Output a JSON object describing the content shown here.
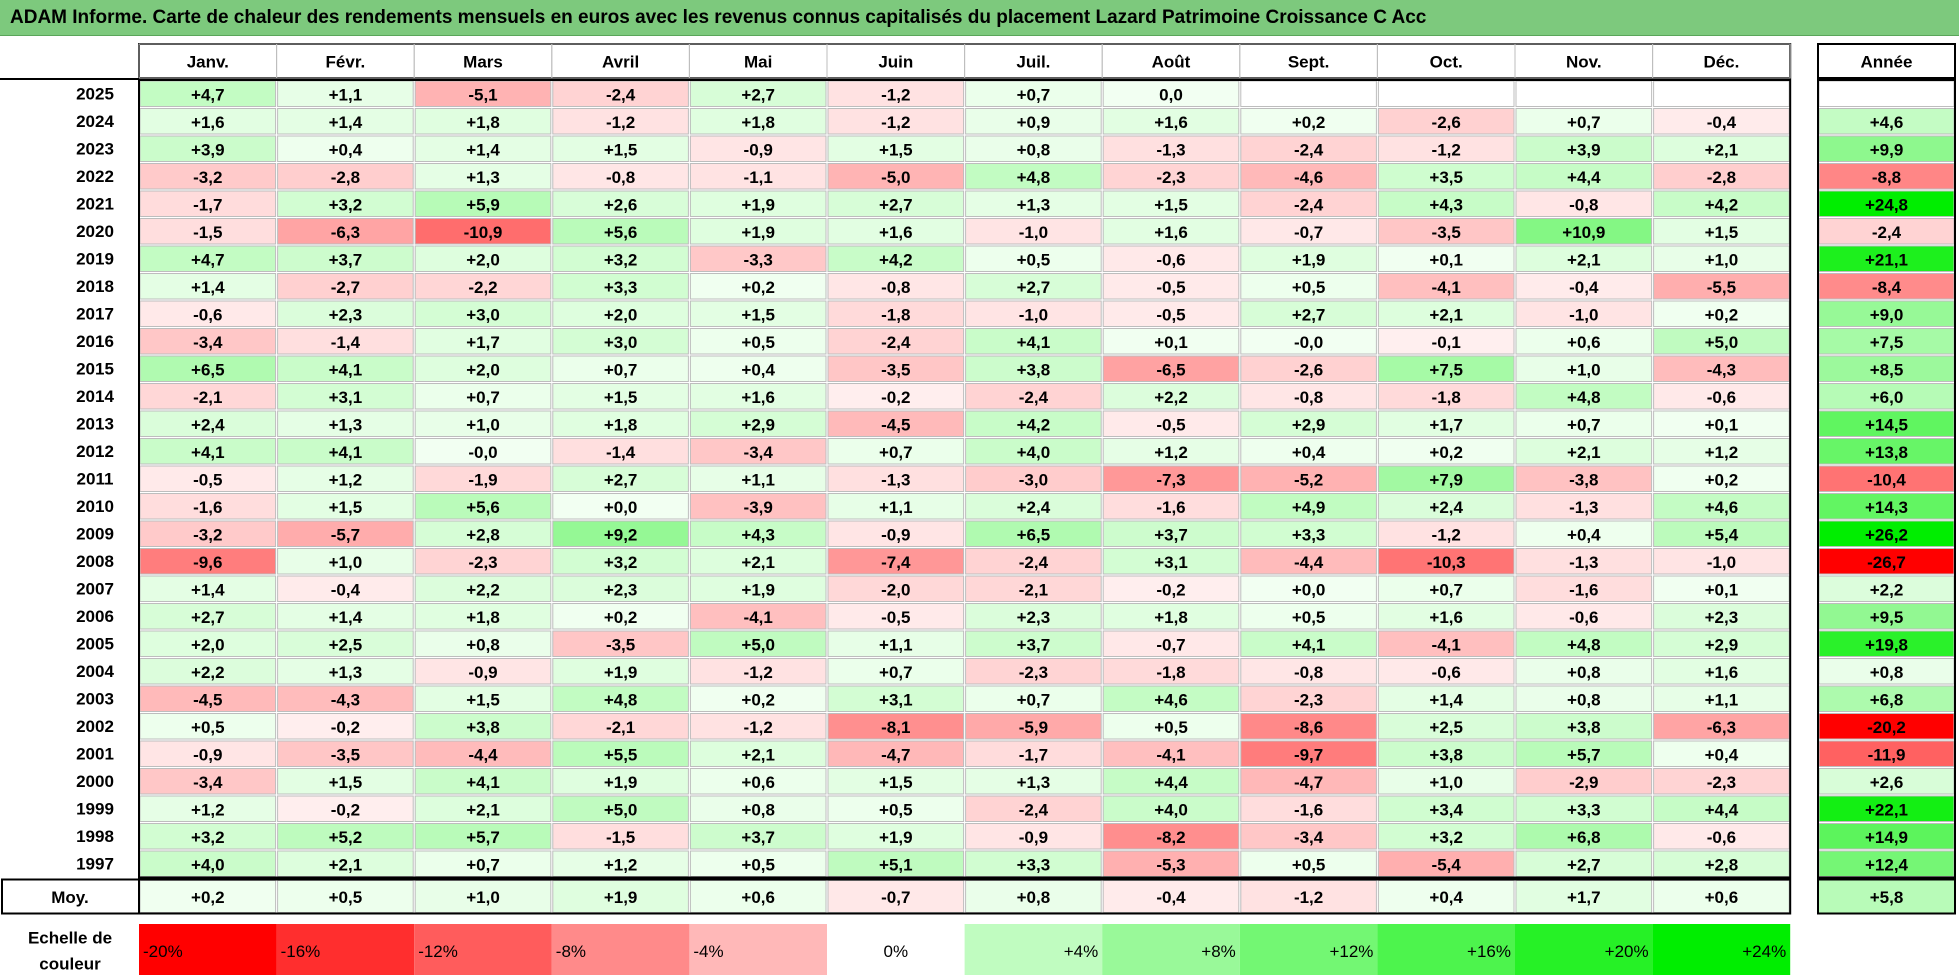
{
  "title": "ADAM Informe. Carte de chaleur des rendements mensuels en euros avec les revenus connus capitalisés du placement Lazard Patrimoine Croissance C Acc",
  "chart_data": {
    "type": "heatmap",
    "title": "ADAM Informe. Carte de chaleur des rendements mensuels en euros avec les revenus connus capitalisés du placement Lazard Patrimoine Croissance C Acc",
    "months": [
      "Janv.",
      "Févr.",
      "Mars",
      "Avril",
      "Mai",
      "Juin",
      "Juil.",
      "Août",
      "Sept.",
      "Oct.",
      "Nov.",
      "Déc."
    ],
    "year_header": "Année",
    "rows": [
      {
        "year": "2025",
        "values": [
          "+4,7",
          "+1,1",
          "-5,1",
          "-2,4",
          "+2,7",
          "-1,2",
          "+0,7",
          "0,0",
          "",
          "",
          "",
          ""
        ],
        "annual": ""
      },
      {
        "year": "2024",
        "values": [
          "+1,6",
          "+1,4",
          "+1,8",
          "-1,2",
          "+1,8",
          "-1,2",
          "+0,9",
          "+1,6",
          "+0,2",
          "-2,6",
          "+0,7",
          "-0,4"
        ],
        "annual": "+4,6"
      },
      {
        "year": "2023",
        "values": [
          "+3,9",
          "+0,4",
          "+1,4",
          "+1,5",
          "-0,9",
          "+1,5",
          "+0,8",
          "-1,3",
          "-2,4",
          "-1,2",
          "+3,9",
          "+2,1"
        ],
        "annual": "+9,9"
      },
      {
        "year": "2022",
        "values": [
          "-3,2",
          "-2,8",
          "+1,3",
          "-0,8",
          "-1,1",
          "-5,0",
          "+4,8",
          "-2,3",
          "-4,6",
          "+3,5",
          "+4,4",
          "-2,8"
        ],
        "annual": "-8,8"
      },
      {
        "year": "2021",
        "values": [
          "-1,7",
          "+3,2",
          "+5,9",
          "+2,6",
          "+1,9",
          "+2,7",
          "+1,3",
          "+1,5",
          "-2,4",
          "+4,3",
          "-0,8",
          "+4,2"
        ],
        "annual": "+24,8"
      },
      {
        "year": "2020",
        "values": [
          "-1,5",
          "-6,3",
          "-10,9",
          "+5,6",
          "+1,9",
          "+1,6",
          "-1,0",
          "+1,6",
          "-0,7",
          "-3,5",
          "+10,9",
          "+1,5"
        ],
        "annual": "-2,4"
      },
      {
        "year": "2019",
        "values": [
          "+4,7",
          "+3,7",
          "+2,0",
          "+3,2",
          "-3,3",
          "+4,2",
          "+0,5",
          "-0,6",
          "+1,9",
          "+0,1",
          "+2,1",
          "+1,0"
        ],
        "annual": "+21,1"
      },
      {
        "year": "2018",
        "values": [
          "+1,4",
          "-2,7",
          "-2,2",
          "+3,3",
          "+0,2",
          "-0,8",
          "+2,7",
          "-0,5",
          "+0,5",
          "-4,1",
          "-0,4",
          "-5,5"
        ],
        "annual": "-8,4"
      },
      {
        "year": "2017",
        "values": [
          "-0,6",
          "+2,3",
          "+3,0",
          "+2,0",
          "+1,5",
          "-1,8",
          "-1,0",
          "-0,5",
          "+2,7",
          "+2,1",
          "-1,0",
          "+0,2"
        ],
        "annual": "+9,0"
      },
      {
        "year": "2016",
        "values": [
          "-3,4",
          "-1,4",
          "+1,7",
          "+3,0",
          "+0,5",
          "-2,4",
          "+4,1",
          "+0,1",
          "-0,0",
          "-0,1",
          "+0,6",
          "+5,0"
        ],
        "annual": "+7,5"
      },
      {
        "year": "2015",
        "values": [
          "+6,5",
          "+4,1",
          "+2,0",
          "+0,7",
          "+0,4",
          "-3,5",
          "+3,8",
          "-6,5",
          "-2,6",
          "+7,5",
          "+1,0",
          "-4,3"
        ],
        "annual": "+8,5"
      },
      {
        "year": "2014",
        "values": [
          "-2,1",
          "+3,1",
          "+0,7",
          "+1,5",
          "+1,6",
          "-0,2",
          "-2,4",
          "+2,2",
          "-0,8",
          "-1,8",
          "+4,8",
          "-0,6"
        ],
        "annual": "+6,0"
      },
      {
        "year": "2013",
        "values": [
          "+2,4",
          "+1,3",
          "+1,0",
          "+1,8",
          "+2,9",
          "-4,5",
          "+4,2",
          "-0,5",
          "+2,9",
          "+1,7",
          "+0,7",
          "+0,1"
        ],
        "annual": "+14,5"
      },
      {
        "year": "2012",
        "values": [
          "+4,1",
          "+4,1",
          "-0,0",
          "-1,4",
          "-3,4",
          "+0,7",
          "+4,0",
          "+1,2",
          "+0,4",
          "+0,2",
          "+2,1",
          "+1,2"
        ],
        "annual": "+13,8"
      },
      {
        "year": "2011",
        "values": [
          "-0,5",
          "+1,2",
          "-1,9",
          "+2,7",
          "+1,1",
          "-1,3",
          "-3,0",
          "-7,3",
          "-5,2",
          "+7,9",
          "-3,8",
          "+0,2"
        ],
        "annual": "-10,4"
      },
      {
        "year": "2010",
        "values": [
          "-1,6",
          "+1,5",
          "+5,6",
          "+0,0",
          "-3,9",
          "+1,1",
          "+2,4",
          "-1,6",
          "+4,9",
          "+2,4",
          "-1,3",
          "+4,6"
        ],
        "annual": "+14,3"
      },
      {
        "year": "2009",
        "values": [
          "-3,2",
          "-5,7",
          "+2,8",
          "+9,2",
          "+4,3",
          "-0,9",
          "+6,5",
          "+3,7",
          "+3,3",
          "-1,2",
          "+0,4",
          "+5,4"
        ],
        "annual": "+26,2"
      },
      {
        "year": "2008",
        "values": [
          "-9,6",
          "+1,0",
          "-2,3",
          "+3,2",
          "+2,1",
          "-7,4",
          "-2,4",
          "+3,1",
          "-4,4",
          "-10,3",
          "-1,3",
          "-1,0"
        ],
        "annual": "-26,7"
      },
      {
        "year": "2007",
        "values": [
          "+1,4",
          "-0,4",
          "+2,2",
          "+2,3",
          "+1,9",
          "-2,0",
          "-2,1",
          "-0,2",
          "+0,0",
          "+0,7",
          "-1,6",
          "+0,1"
        ],
        "annual": "+2,2"
      },
      {
        "year": "2006",
        "values": [
          "+2,7",
          "+1,4",
          "+1,8",
          "+0,2",
          "-4,1",
          "-0,5",
          "+2,3",
          "+1,8",
          "+0,5",
          "+1,6",
          "-0,6",
          "+2,3"
        ],
        "annual": "+9,5"
      },
      {
        "year": "2005",
        "values": [
          "+2,0",
          "+2,5",
          "+0,8",
          "-3,5",
          "+5,0",
          "+1,1",
          "+3,7",
          "-0,7",
          "+4,1",
          "-4,1",
          "+4,8",
          "+2,9"
        ],
        "annual": "+19,8"
      },
      {
        "year": "2004",
        "values": [
          "+2,2",
          "+1,3",
          "-0,9",
          "+1,9",
          "-1,2",
          "+0,7",
          "-2,3",
          "-1,8",
          "-0,8",
          "-0,6",
          "+0,8",
          "+1,6"
        ],
        "annual": "+0,8"
      },
      {
        "year": "2003",
        "values": [
          "-4,5",
          "-4,3",
          "+1,5",
          "+4,8",
          "+0,2",
          "+3,1",
          "+0,7",
          "+4,6",
          "-2,3",
          "+1,4",
          "+0,8",
          "+1,1"
        ],
        "annual": "+6,8"
      },
      {
        "year": "2002",
        "values": [
          "+0,5",
          "-0,2",
          "+3,8",
          "-2,1",
          "-1,2",
          "-8,1",
          "-5,9",
          "+0,5",
          "-8,6",
          "+2,5",
          "+3,8",
          "-6,3"
        ],
        "annual": "-20,2"
      },
      {
        "year": "2001",
        "values": [
          "-0,9",
          "-3,5",
          "-4,4",
          "+5,5",
          "+2,1",
          "-4,7",
          "-1,7",
          "-4,1",
          "-9,7",
          "+3,8",
          "+5,7",
          "+0,4"
        ],
        "annual": "-11,9"
      },
      {
        "year": "2000",
        "values": [
          "-3,4",
          "+1,5",
          "+4,1",
          "+1,9",
          "+0,6",
          "+1,5",
          "+1,3",
          "+4,4",
          "-4,7",
          "+1,0",
          "-2,9",
          "-2,3"
        ],
        "annual": "+2,6"
      },
      {
        "year": "1999",
        "values": [
          "+1,2",
          "-0,2",
          "+2,1",
          "+5,0",
          "+0,8",
          "+0,5",
          "-2,4",
          "+4,0",
          "-1,6",
          "+3,4",
          "+3,3",
          "+4,4"
        ],
        "annual": "+22,1"
      },
      {
        "year": "1998",
        "values": [
          "+3,2",
          "+5,2",
          "+5,7",
          "-1,5",
          "+3,7",
          "+1,9",
          "-0,9",
          "-8,2",
          "-3,4",
          "+3,2",
          "+6,8",
          "-0,6"
        ],
        "annual": "+14,9"
      },
      {
        "year": "1997",
        "values": [
          "+4,0",
          "+2,1",
          "+0,7",
          "+1,2",
          "+0,5",
          "+5,1",
          "+3,3",
          "-5,3",
          "+0,5",
          "-5,4",
          "+2,7",
          "+2,8"
        ],
        "annual": "+12,4"
      }
    ],
    "average": {
      "label": "Moy.",
      "values": [
        "+0,2",
        "+0,5",
        "+1,0",
        "+1,9",
        "+0,6",
        "-0,7",
        "+0,8",
        "-0,4",
        "-1,2",
        "+0,4",
        "+1,7",
        "+0,6"
      ],
      "annual": "+5,8"
    },
    "scale": {
      "label_line1": "Echelle de",
      "label_line2": "couleur",
      "labels": [
        "-20%",
        "-16%",
        "-12%",
        "-8%",
        "-4%",
        "0%",
        "+4%",
        "+8%",
        "+12%",
        "+16%",
        "+20%",
        "+24%"
      ],
      "values": [
        -20,
        -16,
        -12,
        -8,
        -4,
        0,
        4,
        8,
        12,
        16,
        20,
        24
      ]
    },
    "colors": {
      "negative": "#ff0000",
      "positive": "#00ee00",
      "neutral": "#ffffff",
      "title_bg": "#7dc97d",
      "grid": "#bdbdbd",
      "border": "#000000"
    }
  }
}
